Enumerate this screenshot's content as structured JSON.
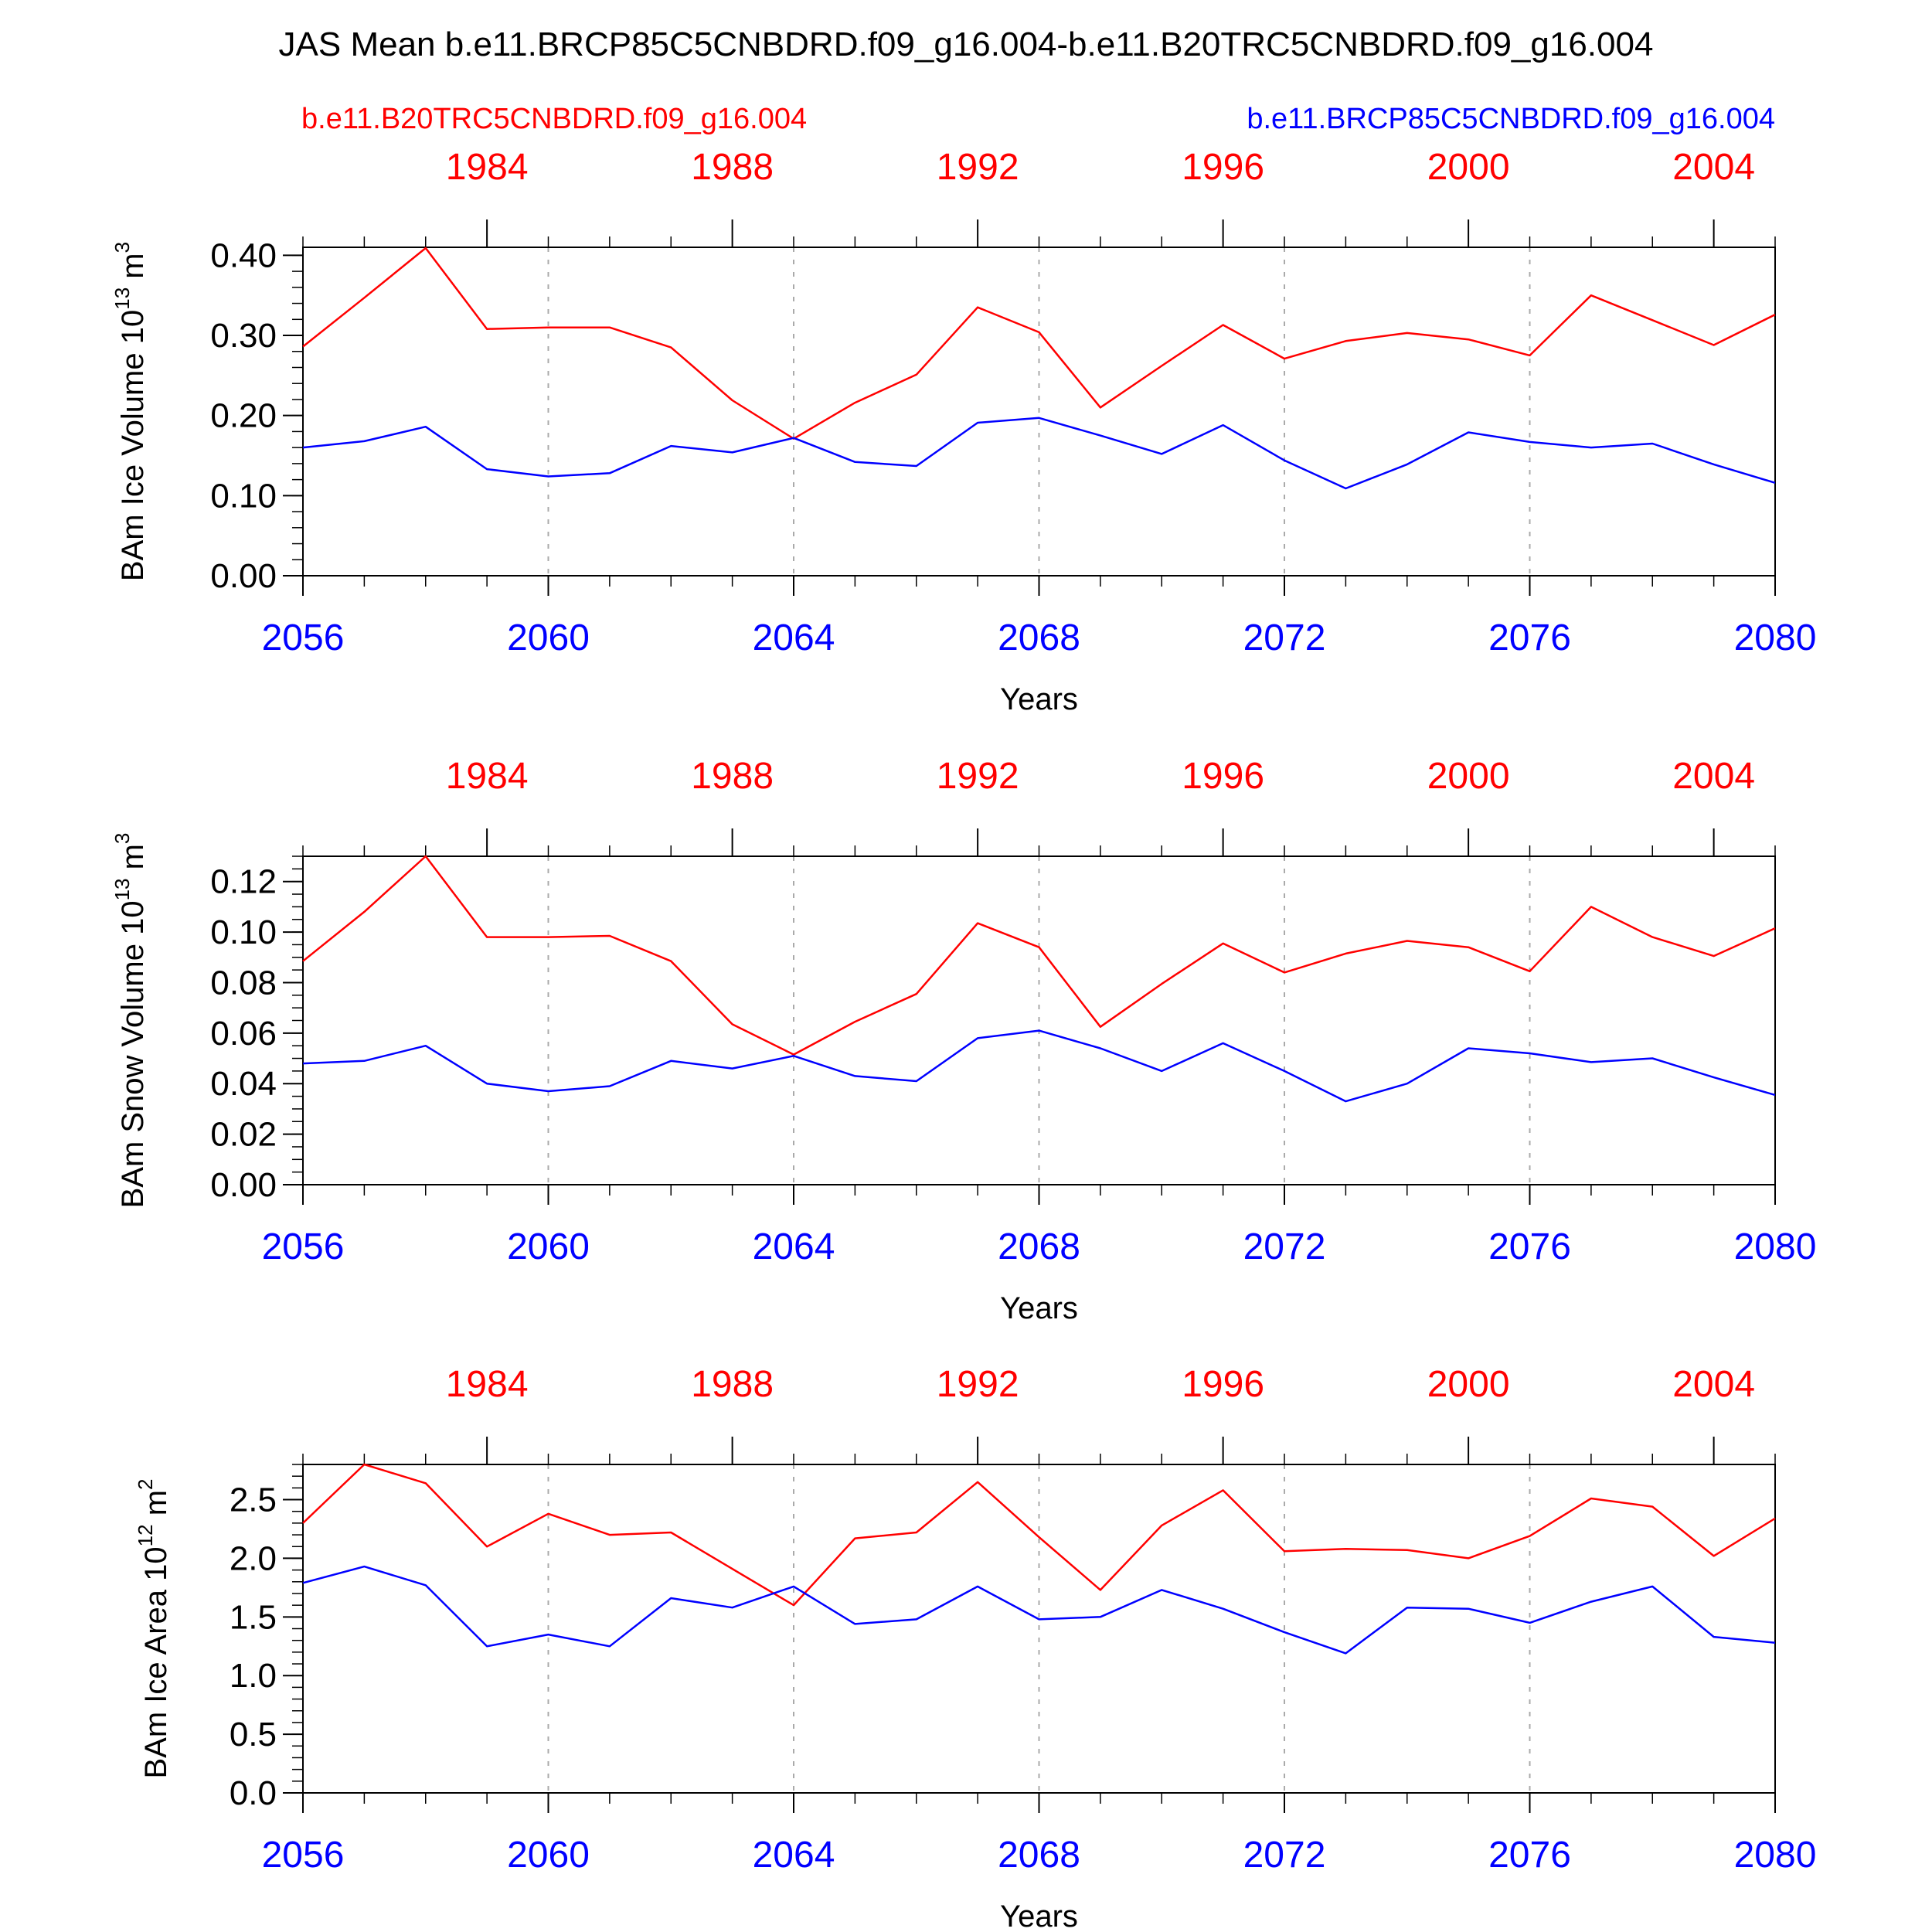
{
  "title": "JAS Mean b.e11.BRCP85C5CNBDRD.f09_g16.004-b.e11.B20TRC5CNBDRD.f09_g16.004",
  "legend": {
    "left": "b.e11.B20TRC5CNBDRD.f09_g16.004",
    "right": "b.e11.BRCP85C5CNBDRD.f09_g16.004"
  },
  "colors": {
    "red": "#ff0000",
    "blue": "#0000ff",
    "axis": "#000000",
    "grid": "#aaaaaa"
  },
  "chart_data": [
    {
      "type": "line",
      "title": "",
      "ylabel": "BAm Ice Volume 10^13 m^3",
      "ylabel_main": "BAm Ice Volume 10",
      "ylabel_exp": "13",
      "ylabel_unit": "m",
      "ylabel_unit_exp": "3",
      "xlabel": "Years",
      "xlim": [
        2056,
        2080
      ],
      "ylim": [
        0,
        0.41
      ],
      "yticks": [
        0,
        0.1,
        0.2,
        0.3,
        0.4
      ],
      "yticklabels": [
        "0.00",
        "0.10",
        "0.20",
        "0.30",
        "0.40"
      ],
      "yminor_step": 0.02,
      "xticks": [
        2056,
        2060,
        2064,
        2068,
        2072,
        2076,
        2080
      ],
      "xticklabels": [
        "2056",
        "2060",
        "2064",
        "2068",
        "2072",
        "2076",
        "2080"
      ],
      "top_xticks": [
        1984,
        1988,
        1992,
        1996,
        2000,
        2004
      ],
      "top_xticklabels": [
        "1984",
        "1988",
        "1992",
        "1996",
        "2000",
        "2004"
      ],
      "top_offset": 75,
      "x": [
        2056,
        2057,
        2058,
        2059,
        2060,
        2061,
        2062,
        2063,
        2064,
        2065,
        2066,
        2067,
        2068,
        2069,
        2070,
        2071,
        2072,
        2073,
        2074,
        2075,
        2076,
        2077,
        2078,
        2079,
        2080
      ],
      "series": [
        {
          "name": "b.e11.B20TRC5CNBDRD.f09_g16.004",
          "color": "red",
          "values": [
            0.286,
            0.347,
            0.409,
            0.308,
            0.31,
            0.31,
            0.285,
            0.219,
            0.171,
            0.216,
            0.251,
            0.335,
            0.304,
            0.21,
            0.262,
            0.313,
            0.271,
            0.293,
            0.303,
            0.295,
            0.275,
            0.35,
            0.319,
            0.288,
            0.326
          ]
        },
        {
          "name": "b.e11.BRCP85C5CNBDRD.f09_g16.004",
          "color": "blue",
          "values": [
            0.16,
            0.168,
            0.186,
            0.133,
            0.124,
            0.128,
            0.162,
            0.154,
            0.172,
            0.142,
            0.137,
            0.191,
            0.197,
            0.175,
            0.152,
            0.188,
            0.144,
            0.109,
            0.139,
            0.179,
            0.167,
            0.16,
            0.165,
            0.139,
            0.116
          ]
        }
      ]
    },
    {
      "type": "line",
      "title": "",
      "ylabel": "BAm Snow Volume 10^13 m^3",
      "ylabel_main": "BAm Snow Volume 10",
      "ylabel_exp": "13",
      "ylabel_unit": "m",
      "ylabel_unit_exp": "3",
      "xlabel": "Years",
      "xlim": [
        2056,
        2080
      ],
      "ylim": [
        0,
        0.13
      ],
      "yticks": [
        0,
        0.02,
        0.04,
        0.06,
        0.08,
        0.1,
        0.12
      ],
      "yticklabels": [
        "0.00",
        "0.02",
        "0.04",
        "0.06",
        "0.08",
        "0.10",
        "0.12"
      ],
      "yminor_step": 0.005,
      "xticks": [
        2056,
        2060,
        2064,
        2068,
        2072,
        2076,
        2080
      ],
      "xticklabels": [
        "2056",
        "2060",
        "2064",
        "2068",
        "2072",
        "2076",
        "2080"
      ],
      "top_xticks": [
        1984,
        1988,
        1992,
        1996,
        2000,
        2004
      ],
      "top_xticklabels": [
        "1984",
        "1988",
        "1992",
        "1996",
        "2000",
        "2004"
      ],
      "top_offset": 75,
      "x": [
        2056,
        2057,
        2058,
        2059,
        2060,
        2061,
        2062,
        2063,
        2064,
        2065,
        2066,
        2067,
        2068,
        2069,
        2070,
        2071,
        2072,
        2073,
        2074,
        2075,
        2076,
        2077,
        2078,
        2079,
        2080
      ],
      "series": [
        {
          "name": "b.e11.B20TRC5CNBDRD.f09_g16.004",
          "color": "red",
          "values": [
            0.0885,
            0.108,
            0.13,
            0.098,
            0.098,
            0.0985,
            0.0885,
            0.0635,
            0.0515,
            0.0645,
            0.0755,
            0.1035,
            0.094,
            0.0625,
            0.0795,
            0.0955,
            0.084,
            0.0915,
            0.0965,
            0.094,
            0.0845,
            0.11,
            0.098,
            0.0905,
            0.1015
          ]
        },
        {
          "name": "b.e11.BRCP85C5CNBDRD.f09_g16.004",
          "color": "blue",
          "values": [
            0.048,
            0.049,
            0.055,
            0.04,
            0.037,
            0.039,
            0.049,
            0.046,
            0.051,
            0.043,
            0.041,
            0.058,
            0.061,
            0.054,
            0.045,
            0.056,
            0.045,
            0.033,
            0.04,
            0.054,
            0.052,
            0.0485,
            0.05,
            0.0425,
            0.0355
          ]
        }
      ]
    },
    {
      "type": "line",
      "title": "",
      "ylabel": "BAm Ice Area 10^12 m^2",
      "ylabel_main": "BAm Ice Area 10",
      "ylabel_exp": "12",
      "ylabel_unit": "m",
      "ylabel_unit_exp": "2",
      "xlabel": "Years",
      "xlim": [
        2056,
        2080
      ],
      "ylim": [
        0,
        2.8
      ],
      "yticks": [
        0,
        0.5,
        1.0,
        1.5,
        2.0,
        2.5
      ],
      "yticklabels": [
        "0.0",
        "0.5",
        "1.0",
        "1.5",
        "2.0",
        "2.5"
      ],
      "yminor_step": 0.1,
      "xticks": [
        2056,
        2060,
        2064,
        2068,
        2072,
        2076,
        2080
      ],
      "xticklabels": [
        "2056",
        "2060",
        "2064",
        "2068",
        "2072",
        "2076",
        "2080"
      ],
      "top_xticks": [
        1984,
        1988,
        1992,
        1996,
        2000,
        2004
      ],
      "top_xticklabels": [
        "1984",
        "1988",
        "1992",
        "1996",
        "2000",
        "2004"
      ],
      "top_offset": 75,
      "x": [
        2056,
        2057,
        2058,
        2059,
        2060,
        2061,
        2062,
        2063,
        2064,
        2065,
        2066,
        2067,
        2068,
        2069,
        2070,
        2071,
        2072,
        2073,
        2074,
        2075,
        2076,
        2077,
        2078,
        2079,
        2080
      ],
      "series": [
        {
          "name": "b.e11.B20TRC5CNBDRD.f09_g16.004",
          "color": "red",
          "values": [
            2.3,
            2.8,
            2.64,
            2.1,
            2.38,
            2.2,
            2.22,
            1.91,
            1.6,
            2.17,
            2.22,
            2.65,
            2.18,
            1.73,
            2.28,
            2.58,
            2.06,
            2.08,
            2.07,
            2.0,
            2.19,
            2.51,
            2.44,
            2.02,
            2.34
          ]
        },
        {
          "name": "b.e11.BRCP85C5CNBDRD.f09_g16.004",
          "color": "blue",
          "values": [
            1.79,
            1.93,
            1.77,
            1.25,
            1.35,
            1.25,
            1.66,
            1.58,
            1.76,
            1.44,
            1.48,
            1.76,
            1.48,
            1.5,
            1.73,
            1.57,
            1.37,
            1.19,
            1.58,
            1.57,
            1.45,
            1.63,
            1.76,
            1.33,
            1.28
          ]
        }
      ]
    }
  ]
}
